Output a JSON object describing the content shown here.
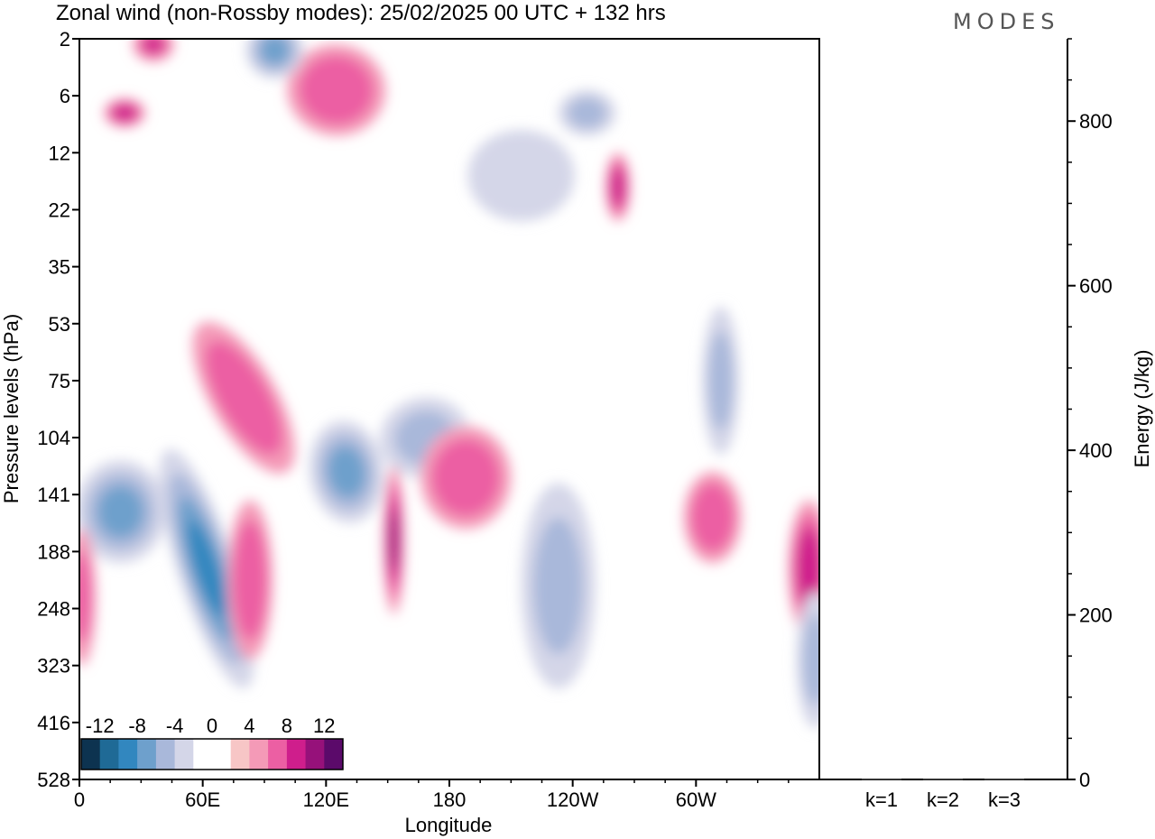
{
  "chart_data": [
    {
      "type": "heatmap",
      "title": "Zonal wind (non-Rossby modes):  25/02/2025  00 UTC  + 132 hrs",
      "xlabel": "Longitude",
      "ylabel": "Pressure levels (hPa)",
      "x_tick_labels": [
        "0",
        "60E",
        "120E",
        "180",
        "120W",
        "60W"
      ],
      "x_tick_degrees": [
        0,
        60,
        120,
        180,
        240,
        300
      ],
      "xlim": [
        0,
        360
      ],
      "y_tick_labels": [
        "2",
        "6",
        "12",
        "22",
        "35",
        "53",
        "75",
        "104",
        "141",
        "188",
        "248",
        "323",
        "416",
        "528"
      ],
      "colorbar": {
        "tick_labels": [
          "-12",
          "-8",
          "-4",
          "0",
          "4",
          "8",
          "12"
        ],
        "colors": [
          "#0d3350",
          "#1f6a96",
          "#3287bf",
          "#6ea0cc",
          "#a9b8da",
          "#d4d6e8",
          "#ffffff",
          "#ffffff",
          "#f7c6c6",
          "#f49ab7",
          "#ec5fa3",
          "#cf1e8c",
          "#96117a",
          "#5b0a6a"
        ]
      },
      "blobs": [
        {
          "lon": 63,
          "lev": 9.1,
          "value": -15,
          "rx": 9,
          "ry": 1.6,
          "rot": 18
        },
        {
          "lon": 62,
          "lev": 9.3,
          "value": -10,
          "rx": 14,
          "ry": 2.2,
          "rot": 18
        },
        {
          "lon": 77,
          "lev": 6.5,
          "value": 12,
          "rx": 10,
          "ry": 1.0,
          "rot": 30
        },
        {
          "lon": 80,
          "lev": 6.3,
          "value": 7,
          "rx": 16,
          "ry": 1.5,
          "rot": 30
        },
        {
          "lon": 20,
          "lev": 8.3,
          "value": -8,
          "rx": 22,
          "ry": 0.9,
          "rot": 0
        },
        {
          "lon": 83,
          "lev": 9.5,
          "value": 7,
          "rx": 11,
          "ry": 1.4,
          "rot": 0
        },
        {
          "lon": 130,
          "lev": 7.6,
          "value": -7,
          "rx": 18,
          "ry": 0.9,
          "rot": 8
        },
        {
          "lon": 168,
          "lev": 7.0,
          "value": -6,
          "rx": 22,
          "ry": 0.7,
          "rot": 14
        },
        {
          "lon": 188,
          "lev": 7.7,
          "value": 7,
          "rx": 22,
          "ry": 0.9,
          "rot": 0
        },
        {
          "lon": 153,
          "lev": 8.8,
          "value": 10,
          "rx": 5,
          "ry": 1.3,
          "rot": 0
        },
        {
          "lon": 233,
          "lev": 9.6,
          "value": -6,
          "rx": 18,
          "ry": 1.8,
          "rot": 0
        },
        {
          "lon": 312,
          "lev": 6.0,
          "value": -6,
          "rx": 9,
          "ry": 1.3,
          "rot": 0
        },
        {
          "lon": 308,
          "lev": 8.4,
          "value": 7,
          "rx": 14,
          "ry": 0.8,
          "rot": 0
        },
        {
          "lon": 355,
          "lev": 9.3,
          "value": 9,
          "rx": 10,
          "ry": 1.2,
          "rot": 0
        },
        {
          "lon": 358,
          "lev": 10.9,
          "value": -6,
          "rx": 9,
          "ry": 1.2,
          "rot": 0
        },
        {
          "lon": 125,
          "lev": 0.9,
          "value": 7,
          "rx": 24,
          "ry": 0.8,
          "rot": -6
        },
        {
          "lon": 95,
          "lev": 0.2,
          "value": -8,
          "rx": 14,
          "ry": 0.5,
          "rot": 0
        },
        {
          "lon": 36,
          "lev": 0.1,
          "value": 8,
          "rx": 10,
          "ry": 0.3,
          "rot": 0
        },
        {
          "lon": 22,
          "lev": 1.3,
          "value": 9,
          "rx": 10,
          "ry": 0.25,
          "rot": 0
        },
        {
          "lon": 247,
          "lev": 1.3,
          "value": -6,
          "rx": 14,
          "ry": 0.4,
          "rot": 0
        },
        {
          "lon": 262,
          "lev": 2.6,
          "value": 9,
          "rx": 6,
          "ry": 0.6,
          "rot": 0
        },
        {
          "lon": 215,
          "lev": 2.4,
          "value": -4,
          "rx": 26,
          "ry": 0.8,
          "rot": 0
        },
        {
          "lon": 1,
          "lev": 9.8,
          "value": 6,
          "rx": 7,
          "ry": 1.2,
          "rot": 0
        }
      ],
      "energy_panel": {
        "ylabel": "Energy (J/kg)",
        "ylim": [
          0,
          900
        ],
        "y_ticks": [
          0,
          200,
          400,
          600,
          800
        ],
        "categories": [
          "k=1",
          "k=2",
          "k=3"
        ],
        "values": [
          1,
          1,
          1
        ]
      }
    }
  ],
  "logo_text": "MODES"
}
